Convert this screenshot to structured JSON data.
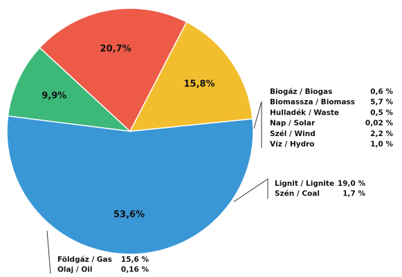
{
  "chart_data": {
    "type": "pie",
    "values": [
      53.6,
      9.9,
      20.7,
      15.8
    ],
    "value_labels": [
      "53,6%",
      "9,9%",
      "20,7%",
      "15,8%"
    ],
    "colors": [
      "#3a97d6",
      "#3cb878",
      "#ee5a48",
      "#f2be2e"
    ],
    "annotations": [
      {
        "items": [
          {
            "label": "Biogáz / Biogas",
            "value_label": "0,6 %"
          },
          {
            "label": "Biomassza / Biomass",
            "value_label": "5,7 %"
          },
          {
            "label": "Hulladék / Waste",
            "value_label": "0,5 %"
          },
          {
            "label": "Nap / Solar",
            "value_label": "0,02 %"
          },
          {
            "label": "Szél / Wind",
            "value_label": "2,2 %"
          },
          {
            "label": "Víz / Hydro",
            "value_label": "1,0 %"
          }
        ]
      },
      {
        "items": [
          {
            "label": "Lignit / Lignite",
            "value_label": "19,0 %"
          },
          {
            "label": "Szén / Coal",
            "value_label": "1,7 %"
          }
        ]
      },
      {
        "items": [
          {
            "label": "Földgáz / Gas",
            "value_label": "15,6 %"
          },
          {
            "label": "Olaj / Oil",
            "value_label": "0,16 %"
          }
        ]
      }
    ]
  }
}
